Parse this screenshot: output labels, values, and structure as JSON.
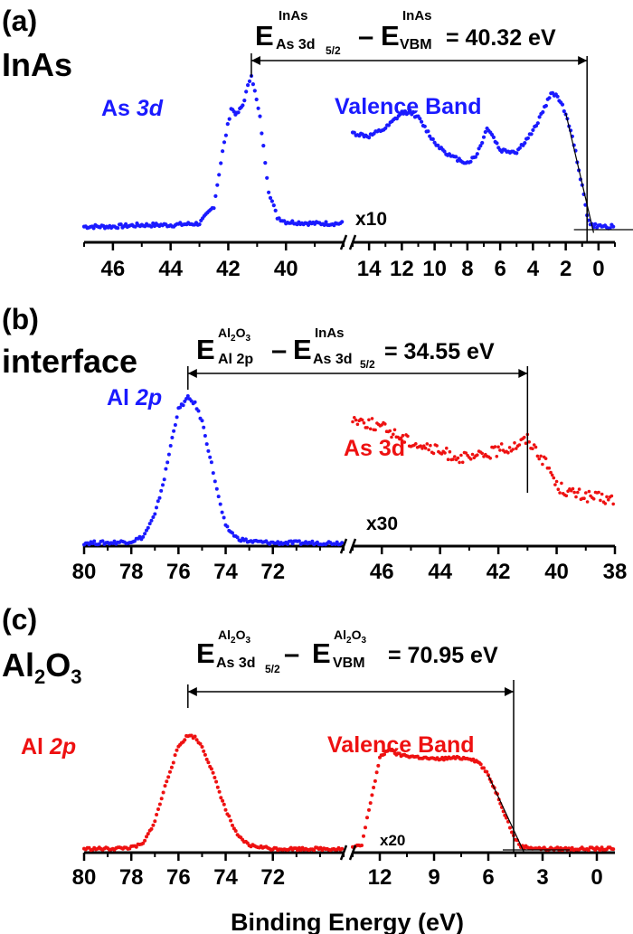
{
  "colors": {
    "blue": "#1a1aff",
    "red": "#ee1111",
    "black": "#000000"
  },
  "xlabel": "Binding Energy (eV)",
  "panels": [
    {
      "letter": "(a)",
      "sample": "InAs",
      "eq": {
        "e1": "E",
        "sup1": "InAs",
        "sub1": "As 3d",
        "sub1b": "5/2",
        "minus": "–",
        "e2": "E",
        "sup2": "InAs",
        "sub2": "VBM",
        "rhs": "= 40.32 eV"
      },
      "labels": {
        "left": "As ",
        "left_it": "3d",
        "right": "Valence Band",
        "mult": "x10"
      }
    },
    {
      "letter": "(b)",
      "sample": "interface",
      "eq": {
        "e1": "E",
        "sup1": "Al",
        "sup1sub": "2",
        "sup1b": "O",
        "sup1sub2": "3",
        "sub1": "Al 2p",
        "minus": "–",
        "e2": "E",
        "sup2": "InAs",
        "sub2": "As 3d",
        "sub2b": "5/2",
        "rhs": "= 34.55 eV"
      },
      "labels": {
        "left": "Al ",
        "left_it": "2p",
        "right": "As 3d",
        "mult": "x30"
      }
    },
    {
      "letter": "(c)",
      "sample_a": "Al",
      "sample_sub1": "2",
      "sample_b": "O",
      "sample_sub2": "3",
      "eq": {
        "e1": "E",
        "sup1": "Al",
        "sup1sub": "2",
        "sup1b": "O",
        "sup1sub2": "3",
        "sub1": "As 3d",
        "sub1b": "5/2",
        "minus": "–",
        "e2": "E",
        "sup2": "Al",
        "sup2sub": "2",
        "sup2b": "O",
        "sup2sub2": "3",
        "sub2": "VBM",
        "rhs": "= 70.95 eV"
      },
      "labels": {
        "left": "Al ",
        "left_it": "2p",
        "right": "Valence Band",
        "mult": "x20"
      }
    }
  ],
  "chart_data": [
    {
      "panel": "a",
      "type": "scatter",
      "segments": [
        {
          "name": "As 3d",
          "xlim": [
            47,
            38
          ],
          "ticks": [
            46,
            44,
            42,
            40
          ],
          "points": [
            [
              47,
              0.02
            ],
            [
              46,
              0.02
            ],
            [
              45,
              0.03
            ],
            [
              44,
              0.03
            ],
            [
              43,
              0.04
            ],
            [
              42.5,
              0.15
            ],
            [
              42.2,
              0.5
            ],
            [
              41.9,
              0.78
            ],
            [
              41.7,
              0.74
            ],
            [
              41.5,
              0.8
            ],
            [
              41.2,
              1.0
            ],
            [
              40.9,
              0.72
            ],
            [
              40.6,
              0.25
            ],
            [
              40.3,
              0.08
            ],
            [
              40,
              0.05
            ],
            [
              39,
              0.04
            ],
            [
              38,
              0.04
            ]
          ]
        },
        {
          "name": "Valence Band",
          "xlim": [
            15,
            -1
          ],
          "ticks": [
            14,
            12,
            10,
            8,
            6,
            4,
            2,
            0
          ],
          "points": [
            [
              15,
              0.62
            ],
            [
              14,
              0.6
            ],
            [
              13,
              0.65
            ],
            [
              12,
              0.75
            ],
            [
              11.5,
              0.76
            ],
            [
              11,
              0.72
            ],
            [
              10,
              0.56
            ],
            [
              9,
              0.47
            ],
            [
              8,
              0.43
            ],
            [
              7.5,
              0.47
            ],
            [
              7,
              0.59
            ],
            [
              6.8,
              0.66
            ],
            [
              6.5,
              0.61
            ],
            [
              6,
              0.51
            ],
            [
              5,
              0.5
            ],
            [
              4,
              0.63
            ],
            [
              3,
              0.85
            ],
            [
              2.8,
              0.88
            ],
            [
              2.5,
              0.86
            ],
            [
              2,
              0.75
            ],
            [
              1.5,
              0.55
            ],
            [
              1,
              0.28
            ],
            [
              0.7,
              0.1
            ],
            [
              0.5,
              0.03
            ],
            [
              0,
              0.02
            ],
            [
              -1,
              0.02
            ]
          ]
        }
      ]
    },
    {
      "panel": "b",
      "type": "scatter",
      "segments": [
        {
          "name": "Al 2p",
          "xlim": [
            80,
            69
          ],
          "ticks": [
            80,
            78,
            76,
            74,
            72
          ],
          "points": [
            [
              80,
              0.01
            ],
            [
              79,
              0.01
            ],
            [
              78,
              0.02
            ],
            [
              77.5,
              0.05
            ],
            [
              77,
              0.2
            ],
            [
              76.6,
              0.45
            ],
            [
              76.2,
              0.78
            ],
            [
              76,
              0.92
            ],
            [
              75.6,
              1.0
            ],
            [
              75.3,
              0.96
            ],
            [
              75,
              0.84
            ],
            [
              74.6,
              0.55
            ],
            [
              74.3,
              0.32
            ],
            [
              74,
              0.12
            ],
            [
              73.5,
              0.04
            ],
            [
              73,
              0.02
            ],
            [
              72,
              0.01
            ],
            [
              69,
              0.01
            ]
          ]
        },
        {
          "name": "As 3d",
          "xlim": [
            47,
            38
          ],
          "ticks": [
            46,
            44,
            42,
            40,
            38
          ],
          "points": [
            [
              47,
              0.86
            ],
            [
              46,
              0.8
            ],
            [
              45,
              0.7
            ],
            [
              44,
              0.63
            ],
            [
              43,
              0.58
            ],
            [
              42,
              0.64
            ],
            [
              41.5,
              0.67
            ],
            [
              41,
              0.72
            ],
            [
              40.6,
              0.62
            ],
            [
              40.2,
              0.5
            ],
            [
              40,
              0.4
            ],
            [
              39.5,
              0.35
            ],
            [
              39,
              0.33
            ],
            [
              38,
              0.3
            ]
          ]
        }
      ]
    },
    {
      "panel": "c",
      "type": "scatter",
      "segments": [
        {
          "name": "Al 2p",
          "xlim": [
            80,
            69
          ],
          "ticks": [
            80,
            78,
            76,
            74,
            72
          ],
          "points": [
            [
              80,
              0.01
            ],
            [
              79,
              0.01
            ],
            [
              78,
              0.02
            ],
            [
              77.5,
              0.05
            ],
            [
              77,
              0.25
            ],
            [
              76.5,
              0.6
            ],
            [
              76,
              0.9
            ],
            [
              75.6,
              1.0
            ],
            [
              75.3,
              0.98
            ],
            [
              75,
              0.9
            ],
            [
              74.6,
              0.7
            ],
            [
              74,
              0.35
            ],
            [
              73.5,
              0.12
            ],
            [
              73,
              0.04
            ],
            [
              72,
              0.01
            ],
            [
              69,
              0.01
            ]
          ]
        },
        {
          "name": "Valence Band",
          "xlim": [
            13.5,
            -1
          ],
          "ticks": [
            12,
            9,
            6,
            3,
            0
          ],
          "points": [
            [
              13.5,
              0.02
            ],
            [
              13,
              0.04
            ],
            [
              12.6,
              0.35
            ],
            [
              12,
              0.8
            ],
            [
              11.5,
              0.88
            ],
            [
              11,
              0.83
            ],
            [
              10,
              0.81
            ],
            [
              9,
              0.79
            ],
            [
              8,
              0.8
            ],
            [
              7,
              0.8
            ],
            [
              6.5,
              0.76
            ],
            [
              6,
              0.65
            ],
            [
              5.5,
              0.48
            ],
            [
              5,
              0.28
            ],
            [
              4.6,
              0.12
            ],
            [
              4.2,
              0.03
            ],
            [
              3,
              0.01
            ],
            [
              0,
              0.01
            ],
            [
              -1,
              0.01
            ]
          ]
        }
      ]
    }
  ]
}
